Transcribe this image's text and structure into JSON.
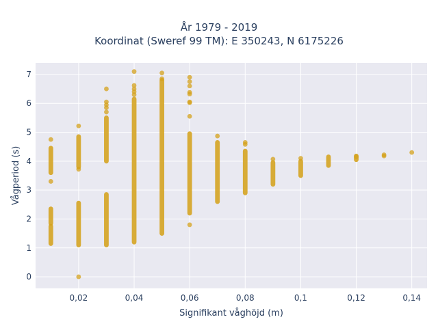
{
  "colors": {
    "background": "#ffffff",
    "plot_bg": "#e9e9f1",
    "grid": "#ffffff",
    "marker": "#d4a21c",
    "text": "#2a3f5f"
  },
  "chart_data": {
    "type": "scatter",
    "title_line1": "År 1979 - 2019",
    "title_line2": "Koordinat (Sweref 99 TM): E 350243, N 6175226",
    "xlabel": "Signifikant våghöjd (m)",
    "ylabel": "Vågperiod (s)",
    "xlim": [
      0.0045,
      0.1455
    ],
    "ylim": [
      -0.4,
      7.4
    ],
    "x_ticks": [
      0.02,
      0.04,
      0.06,
      0.08,
      0.1,
      0.12,
      0.14
    ],
    "x_tick_labels": [
      "0,02",
      "0,04",
      "0,06",
      "0,08",
      "0,1",
      "0,12",
      "0,14"
    ],
    "y_ticks": [
      0,
      1,
      2,
      3,
      4,
      5,
      6,
      7
    ],
    "y_tick_labels": [
      "0",
      "1",
      "2",
      "3",
      "4",
      "5",
      "6",
      "7"
    ],
    "grid": true,
    "series": [
      {
        "ranges": [
          {
            "x": 0.01,
            "y": [
              3.6,
              4.45
            ]
          },
          {
            "x": 0.01,
            "y": [
              1.15,
              1.75
            ]
          },
          {
            "x": 0.01,
            "y": [
              1.85,
              2.35
            ]
          },
          {
            "x": 0.02,
            "y": [
              3.8,
              4.85
            ]
          },
          {
            "x": 0.02,
            "y": [
              1.1,
              2.55
            ]
          },
          {
            "x": 0.03,
            "y": [
              4.0,
              5.5
            ]
          },
          {
            "x": 0.03,
            "y": [
              1.1,
              2.85
            ]
          },
          {
            "x": 0.04,
            "y": [
              1.2,
              6.15
            ]
          },
          {
            "x": 0.05,
            "y": [
              1.5,
              6.8
            ]
          },
          {
            "x": 0.06,
            "y": [
              2.2,
              4.95
            ]
          },
          {
            "x": 0.07,
            "y": [
              2.6,
              4.65
            ]
          },
          {
            "x": 0.08,
            "y": [
              2.9,
              4.35
            ]
          },
          {
            "x": 0.09,
            "y": [
              3.2,
              3.95
            ]
          },
          {
            "x": 0.1,
            "y": [
              3.5,
              4.0
            ]
          },
          {
            "x": 0.11,
            "y": [
              3.85,
              4.15
            ]
          },
          {
            "x": 0.12,
            "y": [
              4.05,
              4.18
            ]
          }
        ],
        "points": [
          [
            0.01,
            4.75
          ],
          [
            0.01,
            3.3
          ],
          [
            0.02,
            5.22
          ],
          [
            0.02,
            3.72
          ],
          [
            0.02,
            0.0
          ],
          [
            0.03,
            6.5
          ],
          [
            0.03,
            6.05
          ],
          [
            0.03,
            5.95
          ],
          [
            0.03,
            5.85
          ],
          [
            0.03,
            5.7
          ],
          [
            0.04,
            7.1
          ],
          [
            0.04,
            6.62
          ],
          [
            0.04,
            6.5
          ],
          [
            0.04,
            6.4
          ],
          [
            0.04,
            6.3
          ],
          [
            0.05,
            7.05
          ],
          [
            0.05,
            6.85
          ],
          [
            0.06,
            6.9
          ],
          [
            0.06,
            6.75
          ],
          [
            0.06,
            6.6
          ],
          [
            0.06,
            6.38
          ],
          [
            0.06,
            6.32
          ],
          [
            0.06,
            6.05
          ],
          [
            0.06,
            6.02
          ],
          [
            0.06,
            5.55
          ],
          [
            0.06,
            1.8
          ],
          [
            0.07,
            4.87
          ],
          [
            0.08,
            4.65
          ],
          [
            0.08,
            4.58
          ],
          [
            0.09,
            4.07
          ],
          [
            0.1,
            4.1
          ],
          [
            0.12,
            4.15
          ],
          [
            0.13,
            4.18
          ],
          [
            0.13,
            4.22
          ],
          [
            0.14,
            4.3
          ]
        ]
      }
    ]
  }
}
